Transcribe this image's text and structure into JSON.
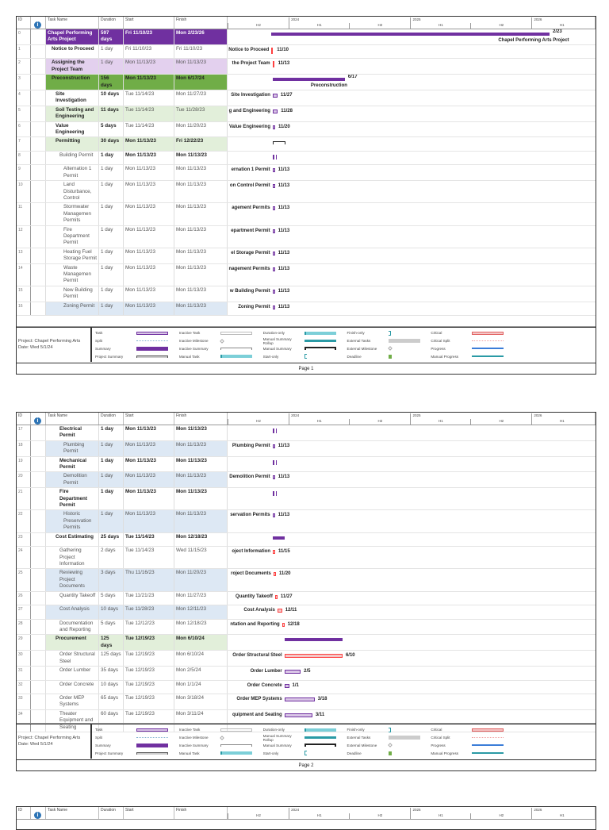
{
  "columns": {
    "id": "ID",
    "name": "Task Name",
    "duration": "Duration",
    "start": "Start",
    "finish": "Finish"
  },
  "timeline": {
    "years": [
      "2024",
      "2025",
      "2026"
    ],
    "halves": [
      "H2",
      "H1",
      "H2",
      "H1",
      "H2",
      "H1"
    ]
  },
  "colors": {
    "summary": "#7030a0",
    "task_border": "#7030a0",
    "task_fill": "#d9c6e6",
    "critical": "#ff4040",
    "critical_fill": "#f4c7c7"
  },
  "pages": [
    {
      "label": "Page 1",
      "rows": [
        {
          "id": "0",
          "name": "Chapel Performing Arts Project",
          "duration": "597 days",
          "start": "Fri 11/10/23",
          "finish": "Mon 2/23/26",
          "style": "purple",
          "bold": "all",
          "indent": 0,
          "kind": "summary",
          "date": "2/23",
          "below": "Chapel Performing Arts Project"
        },
        {
          "id": "1",
          "name": "Notice to Proceed",
          "duration": "1 day",
          "start": "Fri 11/10/23",
          "finish": "Fri 11/10/23",
          "style": "",
          "bold": "name",
          "indent": 1,
          "kind": "milestone",
          "label": "Notice to Proceed",
          "date": "11/10"
        },
        {
          "id": "2",
          "name": "Assigning the Project Team",
          "duration": "1 day",
          "start": "Mon 11/13/23",
          "finish": "Mon 11/13/23",
          "style": "lav",
          "bold": "name",
          "indent": 1,
          "kind": "milestone",
          "label": "the Project Team",
          "date": "11/13"
        },
        {
          "id": "3",
          "name": "Preconstruction",
          "duration": "156 days",
          "start": "Mon 11/13/23",
          "finish": "Mon 6/17/24",
          "style": "green",
          "bold": "all",
          "indent": 1,
          "kind": "summary",
          "date": "6/17",
          "below": "Preconstruction"
        },
        {
          "id": "4",
          "name": "Site Investigation",
          "duration": "10 days",
          "start": "Tue 11/14/23",
          "finish": "Mon 11/27/23",
          "style": "",
          "bold": "namedur",
          "indent": 2,
          "kind": "task",
          "label": "Site Investigation",
          "date": "11/27"
        },
        {
          "id": "5",
          "name": "Soil Testing and Engineering",
          "duration": "11 days",
          "start": "Tue 11/14/23",
          "finish": "Tue 11/28/23",
          "style": "lgreen",
          "bold": "namedur",
          "indent": 2,
          "kind": "task",
          "label": "g and Engineering",
          "date": "11/28"
        },
        {
          "id": "6",
          "name": "Value Engineering",
          "duration": "5 days",
          "start": "Tue 11/14/23",
          "finish": "Mon 11/20/23",
          "style": "",
          "bold": "namedur",
          "indent": 2,
          "kind": "task",
          "label": "Value Engineering",
          "date": "11/20"
        },
        {
          "id": "7",
          "name": "Permitting",
          "duration": "30 days",
          "start": "Mon 11/13/23",
          "finish": "Fri 12/22/23",
          "style": "lgreen",
          "bold": "all",
          "indent": 2,
          "kind": "bracket"
        },
        {
          "id": "8",
          "name": "Building Permit",
          "duration": "1 day",
          "start": "Mon 11/13/23",
          "finish": "Mon 11/13/23",
          "style": "",
          "bold": "rest",
          "indent": 3,
          "kind": "mini"
        },
        {
          "id": "9",
          "name": "Alternation 1 Permit",
          "duration": "1 day",
          "start": "Mon 11/13/23",
          "finish": "Mon 11/13/23",
          "style": "",
          "bold": "none",
          "indent": 4,
          "kind": "task",
          "label": "ernation 1 Permit",
          "date": "11/13"
        },
        {
          "id": "10",
          "name": "Land Disturbance, Control",
          "duration": "1 day",
          "start": "Mon 11/13/23",
          "finish": "Mon 11/13/23",
          "style": "",
          "bold": "none",
          "indent": 4,
          "kind": "task",
          "label": "on Control Permit",
          "date": "11/13"
        },
        {
          "id": "11",
          "name": "Stormwater Managemen Permits",
          "duration": "1 day",
          "start": "Mon 11/13/23",
          "finish": "Mon 11/13/23",
          "style": "",
          "bold": "none",
          "indent": 4,
          "kind": "task",
          "label": "agement Permits",
          "date": "11/13"
        },
        {
          "id": "12",
          "name": "Fire Department Permit",
          "duration": "1 day",
          "start": "Mon 11/13/23",
          "finish": "Mon 11/13/23",
          "style": "",
          "bold": "none",
          "indent": 4,
          "kind": "task",
          "label": "epartment Permit",
          "date": "11/13"
        },
        {
          "id": "13",
          "name": "Heating Fuel Storage Permit",
          "duration": "1 day",
          "start": "Mon 11/13/23",
          "finish": "Mon 11/13/23",
          "style": "",
          "bold": "none",
          "indent": 4,
          "kind": "task",
          "label": "el Storage Permit",
          "date": "11/13"
        },
        {
          "id": "14",
          "name": "Waste Managemen Permit",
          "duration": "1 day",
          "start": "Mon 11/13/23",
          "finish": "Mon 11/13/23",
          "style": "",
          "bold": "none",
          "indent": 4,
          "kind": "task",
          "label": "nagement Permits",
          "date": "11/13"
        },
        {
          "id": "15",
          "name": "New Building Permit",
          "duration": "1 day",
          "start": "Mon 11/13/23",
          "finish": "Mon 11/13/23",
          "style": "",
          "bold": "none",
          "indent": 4,
          "kind": "task",
          "label": "w Building Permit",
          "date": "11/13"
        },
        {
          "id": "16",
          "name": "Zoning Permit",
          "duration": "1 day",
          "start": "Mon 11/13/23",
          "finish": "Mon 11/13/23",
          "style": "blue",
          "bold": "none",
          "indent": 4,
          "kind": "task",
          "label": "Zoning Permit",
          "date": "11/13"
        }
      ]
    },
    {
      "label": "Page 2",
      "rows": [
        {
          "id": "17",
          "name": "Electrical Permit",
          "duration": "1 day",
          "start": "Mon 11/13/23",
          "finish": "Mon 11/13/23",
          "style": "",
          "bold": "all",
          "indent": 3,
          "kind": "mini"
        },
        {
          "id": "18",
          "name": "Plumbing Permit",
          "duration": "1 day",
          "start": "Mon 11/13/23",
          "finish": "Mon 11/13/23",
          "style": "blue",
          "bold": "none",
          "indent": 4,
          "kind": "task",
          "label": "Plumbing Permit",
          "date": "11/13"
        },
        {
          "id": "19",
          "name": "Mechanical Permit",
          "duration": "1 day",
          "start": "Mon 11/13/23",
          "finish": "Mon 11/13/23",
          "style": "",
          "bold": "all",
          "indent": 3,
          "kind": "mini"
        },
        {
          "id": "20",
          "name": "Demolition Permit",
          "duration": "1 day",
          "start": "Mon 11/13/23",
          "finish": "Mon 11/13/23",
          "style": "blue",
          "bold": "none",
          "indent": 4,
          "kind": "task",
          "label": "Demolition Permit",
          "date": "11/13"
        },
        {
          "id": "21",
          "name": "Fire Department Permit",
          "duration": "1 day",
          "start": "Mon 11/13/23",
          "finish": "Mon 11/13/23",
          "style": "",
          "bold": "all",
          "indent": 3,
          "kind": "mini"
        },
        {
          "id": "22",
          "name": "Historic Preservation Permits",
          "duration": "1 day",
          "start": "Mon 11/13/23",
          "finish": "Mon 11/13/23",
          "style": "blue",
          "bold": "none",
          "indent": 4,
          "kind": "task",
          "label": "servation Permits",
          "date": "11/13"
        },
        {
          "id": "23",
          "name": "Cost Estimating",
          "duration": "25 days",
          "start": "Tue 11/14/23",
          "finish": "Mon 12/18/23",
          "style": "",
          "bold": "all",
          "indent": 2,
          "kind": "summary"
        },
        {
          "id": "24",
          "name": "Gathering Project Information",
          "duration": "2 days",
          "start": "Tue 11/14/23",
          "finish": "Wed 11/15/23",
          "style": "",
          "bold": "none",
          "indent": 3,
          "kind": "critical",
          "label": "oject Information",
          "date": "11/15"
        },
        {
          "id": "25",
          "name": "Reviewing Project Documents",
          "duration": "3 days",
          "start": "Thu 11/16/23",
          "finish": "Mon 11/20/23",
          "style": "blue",
          "bold": "none",
          "indent": 3,
          "kind": "critical",
          "label": "roject Documents",
          "date": "11/20"
        },
        {
          "id": "26",
          "name": "Quantity Takeoff",
          "duration": "5 days",
          "start": "Tue 11/21/23",
          "finish": "Mon 11/27/23",
          "style": "",
          "bold": "none",
          "indent": 3,
          "kind": "critical",
          "label": "Quantity Takeoff",
          "date": "11/27"
        },
        {
          "id": "27",
          "name": "Cost Analysis",
          "duration": "10 days",
          "start": "Tue 11/28/23",
          "finish": "Mon 12/11/23",
          "style": "blue",
          "bold": "none",
          "indent": 3,
          "kind": "critical",
          "label": "Cost Analysis",
          "date": "12/11"
        },
        {
          "id": "28",
          "name": "Documentation and Reporting",
          "duration": "5 days",
          "start": "Tue 12/12/23",
          "finish": "Mon 12/18/23",
          "style": "",
          "bold": "none",
          "indent": 3,
          "kind": "critical",
          "label": "ntation and Reporting",
          "date": "12/18"
        },
        {
          "id": "29",
          "name": "Procurement",
          "duration": "125 days",
          "start": "Tue 12/19/23",
          "finish": "Mon 6/10/24",
          "style": "lgreen",
          "bold": "all",
          "indent": 2,
          "kind": "summary"
        },
        {
          "id": "30",
          "name": "Order Structural Steel",
          "duration": "125 days",
          "start": "Tue 12/19/23",
          "finish": "Mon 6/10/24",
          "style": "",
          "bold": "none",
          "indent": 3,
          "kind": "critical",
          "label": "Order Structural Steel",
          "date": "6/10"
        },
        {
          "id": "31",
          "name": "Order Lumber",
          "duration": "35 days",
          "start": "Tue 12/19/23",
          "finish": "Mon 2/5/24",
          "style": "",
          "bold": "none",
          "indent": 3,
          "kind": "task",
          "label": "Order Lumber",
          "date": "2/5"
        },
        {
          "id": "32",
          "name": "Order Concrete",
          "duration": "10 days",
          "start": "Tue 12/19/23",
          "finish": "Mon 1/1/24",
          "style": "",
          "bold": "none",
          "indent": 3,
          "kind": "task",
          "label": "Order Concrete",
          "date": "1/1"
        },
        {
          "id": "33",
          "name": "Order MEP Systems",
          "duration": "65 days",
          "start": "Tue 12/19/23",
          "finish": "Mon 3/18/24",
          "style": "",
          "bold": "none",
          "indent": 3,
          "kind": "task",
          "label": "Order MEP Systems",
          "date": "3/18"
        },
        {
          "id": "34",
          "name": "Theater Equipment and Seating",
          "duration": "60 days",
          "start": "Tue 12/19/23",
          "finish": "Mon 3/11/24",
          "style": "",
          "bold": "none",
          "indent": 3,
          "kind": "task",
          "label": "quipment and Seating",
          "date": "3/11"
        }
      ]
    }
  ],
  "legend": {
    "project": "Project: Chapel Performing Arts",
    "date": "Date: Wed 5/1/24",
    "items": [
      {
        "label": "Task",
        "swatch": "task"
      },
      {
        "label": "Split",
        "swatch": "split"
      },
      {
        "label": "Summary",
        "swatch": "summary"
      },
      {
        "label": "Project Summary",
        "swatch": "bracket"
      },
      {
        "label": "Inactive Task",
        "swatch": "inactive"
      },
      {
        "label": "Inactive Milestone",
        "swatch": "diamond"
      },
      {
        "label": "Inactive Summary",
        "swatch": "bracket-light"
      },
      {
        "label": "Manual Task",
        "swatch": "manual"
      },
      {
        "label": "Duration-only",
        "swatch": "manual"
      },
      {
        "label": "Manual Summary Rollup",
        "swatch": "rollup"
      },
      {
        "label": "Manual Summary",
        "swatch": "bracket-dark"
      },
      {
        "label": "Start-only",
        "swatch": "start"
      },
      {
        "label": "Finish-only",
        "swatch": "finish"
      },
      {
        "label": "External Tasks",
        "swatch": "external"
      },
      {
        "label": "External Milestone",
        "swatch": "diamond"
      },
      {
        "label": "Deadline",
        "swatch": "deadline"
      },
      {
        "label": "Critical",
        "swatch": "critical"
      },
      {
        "label": "Critical Split",
        "swatch": "critsplit"
      },
      {
        "label": "Progress",
        "swatch": "progress"
      },
      {
        "label": "Manual Progress",
        "swatch": "mprogress"
      }
    ]
  }
}
